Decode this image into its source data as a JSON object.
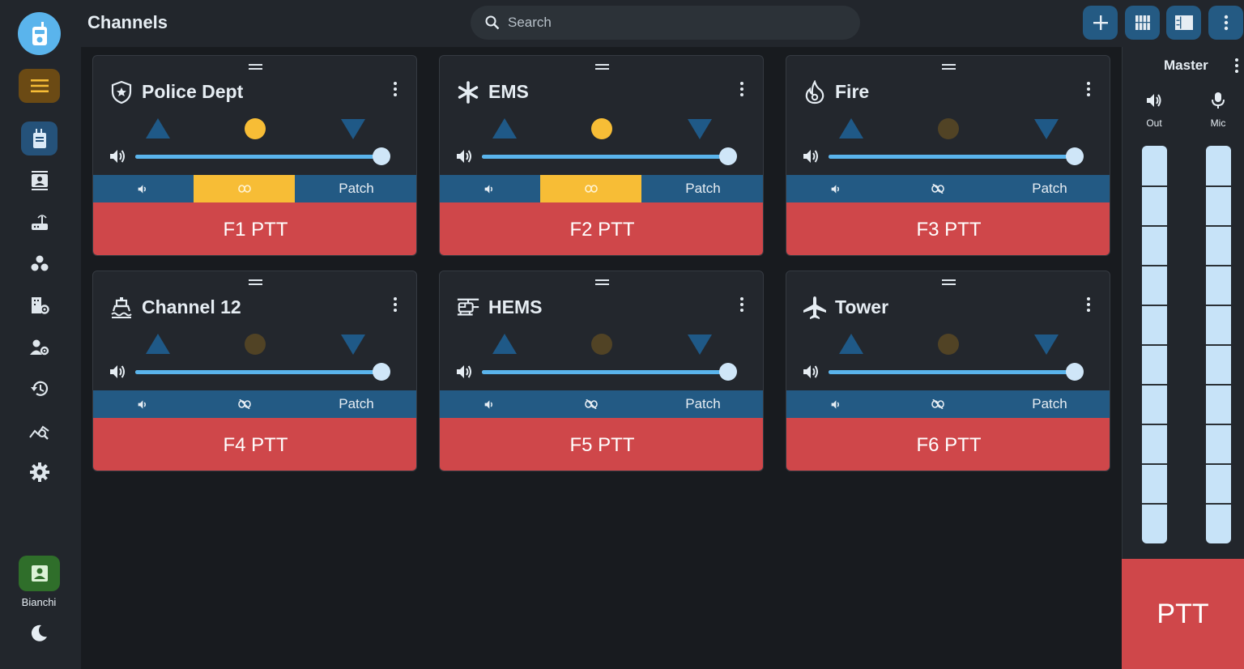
{
  "app": {
    "title": "Channels"
  },
  "search": {
    "placeholder": "Search"
  },
  "sidebar": {
    "user_name": "Bianchi",
    "nav_items": [
      {
        "name": "radio-icon",
        "active": true
      },
      {
        "name": "contacts-icon",
        "active": false
      },
      {
        "name": "router-icon",
        "active": false
      },
      {
        "name": "groups-icon",
        "active": false
      },
      {
        "name": "building-settings-icon",
        "active": false
      },
      {
        "name": "user-settings-icon",
        "active": false
      },
      {
        "name": "history-icon",
        "active": false
      },
      {
        "name": "analytics-icon",
        "active": false
      },
      {
        "name": "gear-icon",
        "active": false
      }
    ]
  },
  "toolbar": {
    "buttons": [
      "add-icon",
      "grid-view-icon",
      "list-view-icon",
      "more-vert-icon"
    ]
  },
  "channels": [
    {
      "name": "Police Dept",
      "icon": "police-badge-icon",
      "ptt": "F1 PTT",
      "patch": "Patch",
      "volume": 1.0,
      "active": true,
      "linked": true
    },
    {
      "name": "EMS",
      "icon": "asterisk-icon",
      "ptt": "F2 PTT",
      "patch": "Patch",
      "volume": 1.0,
      "active": true,
      "linked": true
    },
    {
      "name": "Fire",
      "icon": "fire-icon",
      "ptt": "F3 PTT",
      "patch": "Patch",
      "volume": 1.0,
      "active": false,
      "linked": false
    },
    {
      "name": "Channel 12",
      "icon": "ship-icon",
      "ptt": "F4 PTT",
      "patch": "Patch",
      "volume": 1.0,
      "active": false,
      "linked": false
    },
    {
      "name": "HEMS",
      "icon": "helicopter-icon",
      "ptt": "F5 PTT",
      "patch": "Patch",
      "volume": 1.0,
      "active": false,
      "linked": false
    },
    {
      "name": "Tower",
      "icon": "airplane-icon",
      "ptt": "F6 PTT",
      "patch": "Patch",
      "volume": 1.0,
      "active": false,
      "linked": false
    }
  ],
  "master": {
    "title": "Master",
    "out_label": "Out",
    "mic_label": "Mic",
    "ptt": "PTT"
  },
  "colors": {
    "accent": "#5ab4ec",
    "ptt_red": "#cf474a",
    "active_yellow": "#f7bd36",
    "patch_blue": "#235a84"
  }
}
